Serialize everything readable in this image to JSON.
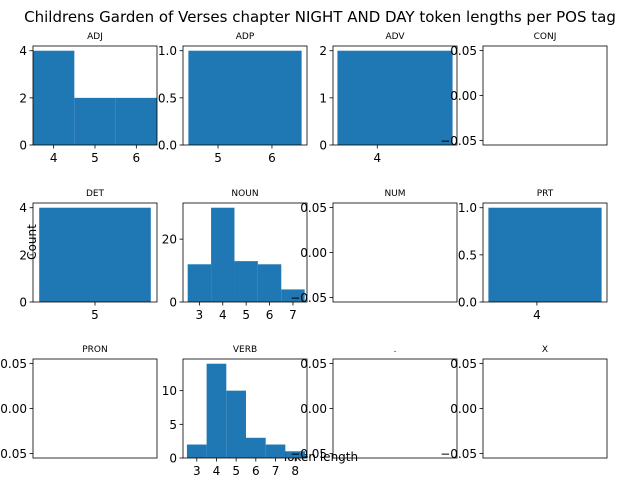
{
  "title": "Childrens Garden of Verses chapter NIGHT AND DAY token lengths per POS tag",
  "xlabel": "Token length",
  "ylabel": "Count",
  "colors": {
    "bar": "#1f77b4",
    "axis": "#000000",
    "background": "#ffffff"
  },
  "chart_data": [
    {
      "type": "bar",
      "title": "ADJ",
      "xlim": [
        3.5,
        6.5
      ],
      "ylim": [
        0,
        4.2
      ],
      "xticks": [
        4,
        5,
        6
      ],
      "yticks": [
        0,
        2,
        4
      ],
      "ytick_labels": [
        "0",
        "2",
        "4"
      ],
      "bins": [
        {
          "x0": 3.5,
          "x1": 4.5,
          "count": 4
        },
        {
          "x0": 4.5,
          "x1": 5.5,
          "count": 2
        },
        {
          "x0": 5.5,
          "x1": 6.5,
          "count": 2
        }
      ]
    },
    {
      "type": "bar",
      "title": "ADP",
      "xlim": [
        4.35,
        6.65
      ],
      "ylim": [
        0,
        1.05
      ],
      "xticks": [
        5,
        6
      ],
      "yticks": [
        0,
        0.5,
        1.0
      ],
      "ytick_labels": [
        "0.0",
        "0.5",
        "1.0"
      ],
      "bins": [
        {
          "x0": 4.45,
          "x1": 6.55,
          "count": 1
        }
      ]
    },
    {
      "type": "bar",
      "title": "ADV",
      "xlim": [
        3.0,
        5.8
      ],
      "ylim": [
        0,
        2.1
      ],
      "xticks": [
        4
      ],
      "yticks": [
        0,
        1,
        2
      ],
      "ytick_labels": [
        "0",
        "1",
        "2"
      ],
      "bins": [
        {
          "x0": 3.1,
          "x1": 5.7,
          "count": 2
        }
      ]
    },
    {
      "type": "bar",
      "title": "CONJ",
      "xlim": [
        0,
        1
      ],
      "ylim": [
        -0.055,
        0.055
      ],
      "xticks": [],
      "yticks": [
        -0.05,
        0,
        0.05
      ],
      "ytick_labels": [
        "−0.05",
        "0.00",
        "0.05"
      ],
      "bins": []
    },
    {
      "type": "bar",
      "title": "DET",
      "xlim": [
        3.5,
        6.5
      ],
      "ylim": [
        0,
        4.2
      ],
      "xticks": [
        5
      ],
      "yticks": [
        0,
        2,
        4
      ],
      "ytick_labels": [
        "0",
        "2",
        "4"
      ],
      "bins": [
        {
          "x0": 3.65,
          "x1": 6.35,
          "count": 4
        }
      ]
    },
    {
      "type": "bar",
      "title": "NOUN",
      "xlim": [
        2.3,
        7.6
      ],
      "ylim": [
        0,
        31.5
      ],
      "xticks": [
        3,
        4,
        5,
        6,
        7
      ],
      "yticks": [
        0,
        20
      ],
      "ytick_labels": [
        "0",
        "20"
      ],
      "bins": [
        {
          "x0": 2.5,
          "x1": 3.5,
          "count": 12
        },
        {
          "x0": 3.5,
          "x1": 4.5,
          "count": 30
        },
        {
          "x0": 4.5,
          "x1": 5.5,
          "count": 13
        },
        {
          "x0": 5.5,
          "x1": 6.5,
          "count": 12
        },
        {
          "x0": 6.5,
          "x1": 7.5,
          "count": 4
        }
      ]
    },
    {
      "type": "bar",
      "title": "NUM",
      "xlim": [
        0,
        1
      ],
      "ylim": [
        -0.055,
        0.055
      ],
      "xticks": [],
      "yticks": [
        -0.05,
        0,
        0.05
      ],
      "ytick_labels": [
        "−0.05",
        "0.00",
        "0.05"
      ],
      "bins": []
    },
    {
      "type": "bar",
      "title": "PRT",
      "xlim": [
        3.0,
        5.3
      ],
      "ylim": [
        0,
        1.05
      ],
      "xticks": [
        4
      ],
      "yticks": [
        0,
        0.5,
        1.0
      ],
      "ytick_labels": [
        "0.0",
        "0.5",
        "1.0"
      ],
      "bins": [
        {
          "x0": 3.1,
          "x1": 5.2,
          "count": 1
        }
      ]
    },
    {
      "type": "bar",
      "title": "PRON",
      "xlim": [
        0,
        1
      ],
      "ylim": [
        -0.055,
        0.055
      ],
      "xticks": [],
      "yticks": [
        -0.05,
        0,
        0.05
      ],
      "ytick_labels": [
        "−0.05",
        "0.00",
        "0.05"
      ],
      "bins": []
    },
    {
      "type": "bar",
      "title": "VERB",
      "xlim": [
        2.3,
        8.6
      ],
      "ylim": [
        0,
        14.7
      ],
      "xticks": [
        3,
        4,
        5,
        6,
        7,
        8
      ],
      "yticks": [
        0,
        5,
        10
      ],
      "ytick_labels": [
        "0",
        "5",
        "10"
      ],
      "bins": [
        {
          "x0": 2.5,
          "x1": 3.5,
          "count": 2
        },
        {
          "x0": 3.5,
          "x1": 4.5,
          "count": 14
        },
        {
          "x0": 4.5,
          "x1": 5.5,
          "count": 10
        },
        {
          "x0": 5.5,
          "x1": 6.5,
          "count": 3
        },
        {
          "x0": 6.5,
          "x1": 7.5,
          "count": 2
        },
        {
          "x0": 7.5,
          "x1": 8.5,
          "count": 1
        }
      ]
    },
    {
      "type": "bar",
      "title": ".",
      "xlim": [
        0,
        1
      ],
      "ylim": [
        -0.055,
        0.055
      ],
      "xticks": [],
      "yticks": [
        -0.05,
        0,
        0.05
      ],
      "ytick_labels": [
        "−0.05",
        "0.00",
        "0.05"
      ],
      "bins": []
    },
    {
      "type": "bar",
      "title": "X",
      "xlim": [
        0,
        1
      ],
      "ylim": [
        -0.055,
        0.055
      ],
      "xticks": [],
      "yticks": [
        -0.05,
        0,
        0.05
      ],
      "ytick_labels": [
        "−0.05",
        "0.00",
        "0.05"
      ],
      "bins": []
    }
  ]
}
